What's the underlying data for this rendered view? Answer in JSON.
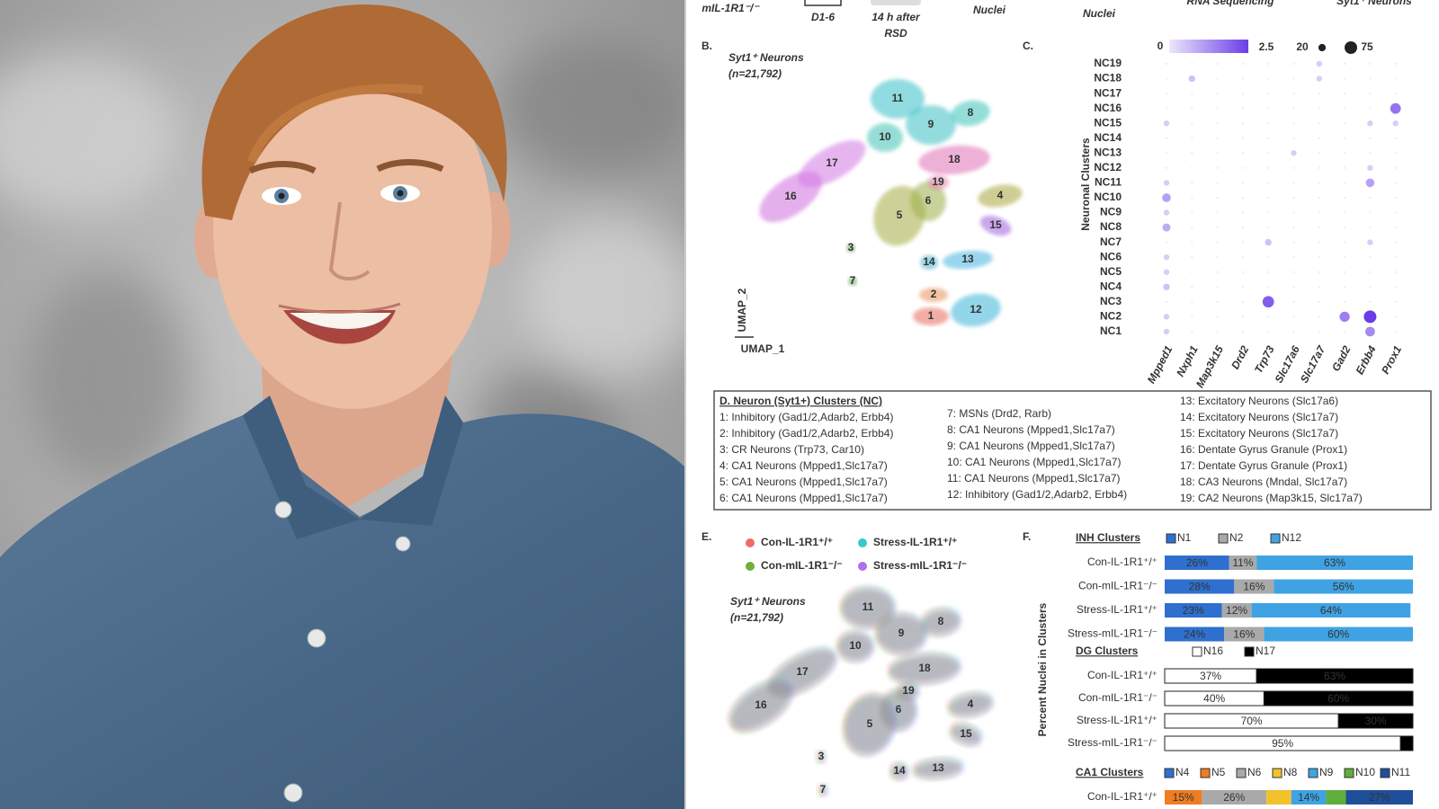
{
  "top_strip": [
    "mIL-1R1⁻/⁻",
    "D1-6",
    "14 h after",
    "RSD",
    "Nuclei",
    "Nuclei",
    "RNA Sequencing",
    "Syt1⁺ Neurons"
  ],
  "panel_b": {
    "label": "B.",
    "title_lines": [
      "Syt1⁺ Neurons",
      "(n=21,792)"
    ],
    "x_axis": "UMAP_1",
    "y_axis": "UMAP_2",
    "clusters": [
      "1",
      "2",
      "3",
      "4",
      "5",
      "6",
      "7",
      "8",
      "9",
      "10",
      "11",
      "12",
      "13",
      "14",
      "15",
      "16",
      "17",
      "18",
      "19"
    ],
    "colors": [
      "#e56b5d",
      "#e8915a",
      "#5aa34a",
      "#a8a63c",
      "#a6ad45",
      "#9bb04a",
      "#4f9e4a",
      "#3cc4b8",
      "#3cbfc4",
      "#3fc2b5",
      "#38c0c8",
      "#3bb5d8",
      "#45b5e0",
      "#3fb0cc",
      "#a05ee0",
      "#d06ee0",
      "#d27ae5",
      "#e070b5",
      "#e47eb0"
    ]
  },
  "panel_c": {
    "label": "C.",
    "y_axis": "Neuronal Clusters",
    "color_scale": [
      0,
      2.5
    ],
    "size_scale": [
      20,
      75
    ],
    "genes": [
      "Mpped1",
      "Nxph1",
      "Map3k15",
      "Drd2",
      "Trp73",
      "Slc17a6",
      "Slc17a7",
      "Gad2",
      "Erbb4",
      "Prox1"
    ],
    "rows": [
      {
        "label": "NC19",
        "pct": [
          0,
          0,
          0,
          0,
          0,
          0,
          10,
          0,
          0,
          0
        ]
      },
      {
        "label": "NC18",
        "pct": [
          0,
          15,
          0,
          0,
          0,
          0,
          10,
          0,
          0,
          0
        ]
      },
      {
        "label": "NC17",
        "pct": [
          0,
          0,
          0,
          0,
          0,
          0,
          0,
          0,
          0,
          0
        ]
      },
      {
        "label": "NC16",
        "pct": [
          0,
          0,
          0,
          0,
          0,
          0,
          0,
          0,
          0,
          50
        ]
      },
      {
        "label": "NC15",
        "pct": [
          10,
          0,
          0,
          0,
          0,
          0,
          0,
          0,
          10,
          10
        ]
      },
      {
        "label": "NC14",
        "pct": [
          0,
          0,
          0,
          0,
          0,
          0,
          0,
          0,
          0,
          0
        ]
      },
      {
        "label": "NC13",
        "pct": [
          0,
          0,
          0,
          0,
          0,
          10,
          0,
          0,
          0,
          0
        ]
      },
      {
        "label": "NC12",
        "pct": [
          0,
          0,
          0,
          0,
          0,
          0,
          0,
          0,
          10,
          0
        ]
      },
      {
        "label": "NC11",
        "pct": [
          10,
          0,
          0,
          0,
          0,
          0,
          0,
          0,
          30,
          0
        ]
      },
      {
        "label": "NC10",
        "pct": [
          30,
          0,
          0,
          0,
          0,
          0,
          0,
          0,
          0,
          0
        ]
      },
      {
        "label": "NC9",
        "pct": [
          10,
          0,
          0,
          0,
          0,
          0,
          0,
          0,
          0,
          0
        ]
      },
      {
        "label": "NC8",
        "pct": [
          25,
          0,
          0,
          0,
          0,
          0,
          0,
          0,
          0,
          0
        ]
      },
      {
        "label": "NC7",
        "pct": [
          0,
          0,
          0,
          0,
          15,
          0,
          0,
          0,
          10,
          0
        ]
      },
      {
        "label": "NC6",
        "pct": [
          10,
          0,
          0,
          0,
          0,
          0,
          0,
          0,
          0,
          0
        ]
      },
      {
        "label": "NC5",
        "pct": [
          10,
          0,
          0,
          0,
          0,
          0,
          0,
          0,
          0,
          0
        ]
      },
      {
        "label": "NC4",
        "pct": [
          15,
          0,
          0,
          0,
          0,
          0,
          0,
          0,
          0,
          0
        ]
      },
      {
        "label": "NC3",
        "pct": [
          0,
          0,
          0,
          0,
          60,
          0,
          0,
          0,
          0,
          0
        ]
      },
      {
        "label": "NC2",
        "pct": [
          10,
          0,
          0,
          0,
          0,
          0,
          0,
          45,
          75,
          0
        ]
      },
      {
        "label": "NC1",
        "pct": [
          10,
          0,
          0,
          0,
          0,
          0,
          0,
          0,
          40,
          0
        ]
      }
    ]
  },
  "panel_d": {
    "title": "D. Neuron (Syt1+) Clusters (NC)",
    "entries": [
      "1: Inhibitory (Gad1/2,Adarb2, Erbb4)",
      "2: Inhibitory (Gad1/2,Adarb2, Erbb4)",
      "3: CR Neurons (Trp73, Car10)",
      "4: CA1 Neurons (Mpped1,Slc17a7)",
      "5: CA1 Neurons (Mpped1,Slc17a7)",
      "6: CA1 Neurons (Mpped1,Slc17a7)",
      "7: MSNs (Drd2, Rarb)",
      "8: CA1 Neurons (Mpped1,Slc17a7)",
      "9: CA1 Neurons (Mpped1,Slc17a7)",
      "10: CA1 Neurons (Mpped1,Slc17a7)",
      "11: CA1 Neurons (Mpped1,Slc17a7)",
      "12: Inhibitory (Gad1/2,Adarb2, Erbb4)",
      "13: Excitatory Neurons (Slc17a6)",
      "14: Excitatory Neurons (Slc17a7)",
      "15: Excitatory Neurons (Slc17a7)",
      "16: Dentate Gyrus Granule (Prox1)",
      "17: Dentate Gyrus Granule (Prox1)",
      "18: CA3 Neurons (Mndal, Slc17a7)",
      "19: CA2 Neurons (Map3k15, Slc17a7)"
    ]
  },
  "panel_e": {
    "label": "E.",
    "title_lines": [
      "Syt1⁺ Neurons",
      "(n=21,792)"
    ],
    "legend": [
      {
        "name": "Con-IL-1R1⁺/⁺",
        "color": "#ef6b6b"
      },
      {
        "name": "Stress-IL-1R1⁺/⁺",
        "color": "#3cc8c8"
      },
      {
        "name": "Con-mIL-1R1⁻/⁻",
        "color": "#6fb03c"
      },
      {
        "name": "Stress-mIL-1R1⁻/⁻",
        "color": "#b070e8"
      }
    ],
    "clusters": [
      "11",
      "8",
      "10",
      "9",
      "15",
      "18",
      "17",
      "16",
      "6",
      "5",
      "4",
      "19",
      "3",
      "7",
      "14",
      "13"
    ]
  },
  "panel_f": {
    "label": "F.",
    "y_axis": "Percent Nuclei in Clusters",
    "groups": [
      {
        "title": "INH Clusters",
        "series": [
          {
            "name": "N1",
            "color": "#2f6fd0"
          },
          {
            "name": "N2",
            "color": "#a9a9a9"
          },
          {
            "name": "N12",
            "color": "#3fa3e3"
          }
        ],
        "rows": [
          {
            "name": "Con-IL-1R1⁺/⁺",
            "values": [
              26,
              11,
              63
            ],
            "value_labels": [
              "26%",
              "11%",
              "63%"
            ]
          },
          {
            "name": "Con-mIL-1R1⁻/⁻",
            "values": [
              28,
              16,
              56
            ],
            "value_labels": [
              "28%",
              "16%",
              "56%"
            ]
          },
          {
            "name": "Stress-IL-1R1⁺/⁺",
            "values": [
              23,
              12,
              64
            ],
            "value_labels": [
              "23%",
              "12%",
              "64%"
            ]
          },
          {
            "name": "Stress-mIL-1R1⁻/⁻",
            "values": [
              24,
              16,
              60
            ],
            "value_labels": [
              "24%",
              "16%",
              "60%"
            ]
          }
        ]
      },
      {
        "title": "DG Clusters",
        "series": [
          {
            "name": "N16",
            "color": "#ffffff"
          },
          {
            "name": "N17",
            "color": "#000000"
          }
        ],
        "rows": [
          {
            "name": "Con-IL-1R1⁺/⁺",
            "values": [
              37,
              63
            ],
            "value_labels": [
              "37%",
              "63%"
            ]
          },
          {
            "name": "Con-mIL-1R1⁻/⁻",
            "values": [
              40,
              60
            ],
            "value_labels": [
              "40%",
              "60%"
            ]
          },
          {
            "name": "Stress-IL-1R1⁺/⁺",
            "values": [
              70,
              30
            ],
            "value_labels": [
              "70%",
              "30%"
            ]
          },
          {
            "name": "Stress-mIL-1R1⁻/⁻",
            "values": [
              95,
              5
            ],
            "value_labels": [
              "95%",
              null
            ]
          }
        ]
      },
      {
        "title": "CA1 Clusters",
        "series": [
          {
            "name": "N4",
            "color": "#2f6fd0"
          },
          {
            "name": "N5",
            "color": "#ef7d22"
          },
          {
            "name": "N6",
            "color": "#a9a9a9"
          },
          {
            "name": "N8",
            "color": "#f2c12e"
          },
          {
            "name": "N9",
            "color": "#3fa3e3"
          },
          {
            "name": "N10",
            "color": "#5fae3c"
          },
          {
            "name": "N11",
            "color": "#1f4f98"
          }
        ],
        "rows": [
          {
            "name": "Con-IL-1R1⁺/⁺",
            "values": [
              0,
              15,
              26,
              10,
              14,
              8,
              27
            ],
            "value_labels": [
              null,
              "15%",
              "26%",
              null,
              "14%",
              null,
              "27%"
            ]
          }
        ]
      }
    ]
  }
}
